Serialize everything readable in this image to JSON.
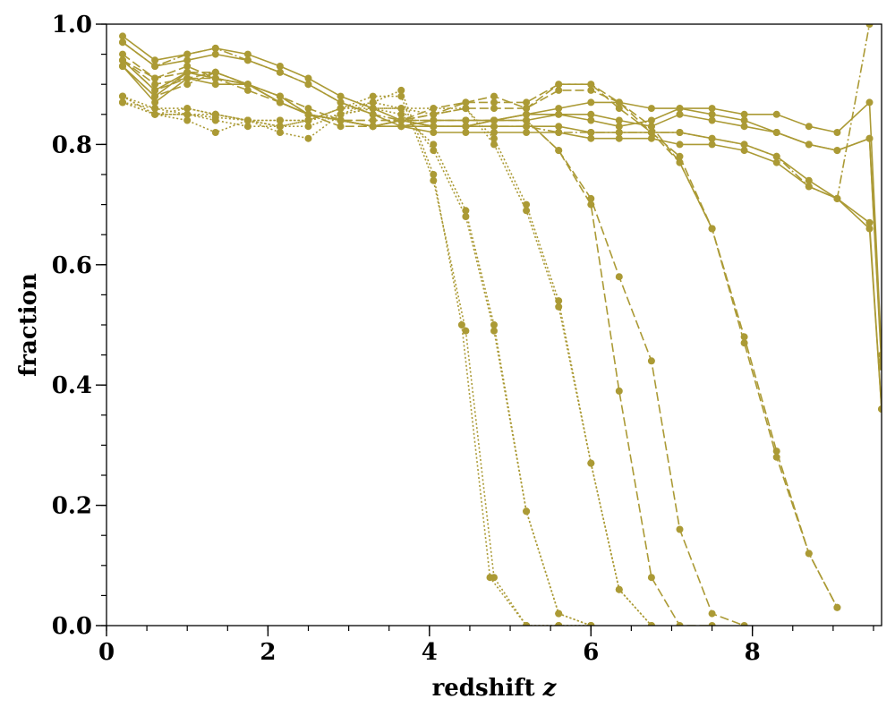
{
  "chart_data": {
    "type": "line",
    "title": "",
    "xlabel": "redshift",
    "xlabel_var": "z",
    "ylabel": "fraction",
    "xlim": [
      0,
      9.6
    ],
    "ylim": [
      0,
      1.0
    ],
    "grid": false,
    "legend": "none",
    "line_color": "#ab9a35",
    "x_ticks": [
      {
        "value": 0,
        "label": "0"
      },
      {
        "value": 2,
        "label": "2"
      },
      {
        "value": 4,
        "label": "4"
      },
      {
        "value": 6,
        "label": "6"
      },
      {
        "value": 8,
        "label": "8"
      }
    ],
    "y_ticks": [
      {
        "value": 0.0,
        "label": "0.0"
      },
      {
        "value": 0.2,
        "label": "0.2"
      },
      {
        "value": 0.4,
        "label": "0.4"
      },
      {
        "value": 0.6,
        "label": "0.6"
      },
      {
        "value": 0.8,
        "label": "0.8"
      },
      {
        "value": 1.0,
        "label": "1.0"
      }
    ],
    "x_minor_step": 0.5,
    "y_minor_step": 0.05,
    "series": [
      {
        "style": "dotted",
        "x": [
          0.2,
          0.6,
          1.0,
          1.35,
          1.75,
          2.15,
          2.5,
          2.9,
          3.3,
          3.65,
          4.05,
          4.4,
          4.75,
          5.2,
          5.6,
          6.0
        ],
        "values": [
          0.87,
          0.85,
          0.85,
          0.845,
          0.84,
          0.83,
          0.83,
          0.85,
          0.87,
          0.89,
          0.75,
          0.5,
          0.08,
          0.0,
          0.0,
          0.0
        ]
      },
      {
        "style": "dotted",
        "x": [
          0.2,
          0.6,
          1.0,
          1.35,
          1.75,
          2.15,
          2.5,
          2.9,
          3.3,
          3.65,
          4.05,
          4.45,
          4.8,
          5.2,
          5.6,
          6.0
        ],
        "values": [
          0.88,
          0.86,
          0.86,
          0.85,
          0.84,
          0.83,
          0.84,
          0.86,
          0.88,
          0.88,
          0.74,
          0.49,
          0.08,
          0.0,
          0.0,
          0.0
        ]
      },
      {
        "style": "dotted",
        "x": [
          0.2,
          0.6,
          1.0,
          1.35,
          1.75,
          2.15,
          2.5,
          2.9,
          3.3,
          3.65,
          4.05,
          4.45,
          4.8,
          5.2,
          5.6,
          6.0
        ],
        "values": [
          0.87,
          0.85,
          0.84,
          0.82,
          0.84,
          0.82,
          0.81,
          0.85,
          0.86,
          0.85,
          0.8,
          0.69,
          0.5,
          0.19,
          0.02,
          0.0
        ]
      },
      {
        "style": "dotted",
        "x": [
          0.2,
          0.6,
          1.0,
          1.35,
          1.75,
          2.15,
          2.5,
          2.9,
          3.3,
          3.65,
          4.05,
          4.45,
          4.8,
          5.2,
          5.6,
          6.0
        ],
        "values": [
          0.88,
          0.85,
          0.85,
          0.84,
          0.83,
          0.83,
          0.84,
          0.86,
          0.86,
          0.86,
          0.79,
          0.68,
          0.49,
          0.19,
          0.02,
          0.0
        ]
      },
      {
        "style": "dotted",
        "x": [
          0.2,
          0.6,
          1.0,
          1.35,
          1.75,
          2.15,
          2.5,
          2.9,
          3.3,
          3.65,
          4.05,
          4.45,
          4.8,
          5.2,
          5.6,
          6.0,
          6.35,
          6.75
        ],
        "values": [
          0.87,
          0.86,
          0.85,
          0.85,
          0.84,
          0.84,
          0.84,
          0.85,
          0.86,
          0.86,
          0.85,
          0.86,
          0.81,
          0.7,
          0.54,
          0.27,
          0.06,
          0.0
        ]
      },
      {
        "style": "dotted",
        "x": [
          0.2,
          0.6,
          1.0,
          1.35,
          1.75,
          2.15,
          2.5,
          2.9,
          3.3,
          3.65,
          4.05,
          4.45,
          4.8,
          5.2,
          5.6,
          6.0,
          6.35,
          6.75
        ],
        "values": [
          0.88,
          0.85,
          0.86,
          0.85,
          0.84,
          0.84,
          0.84,
          0.86,
          0.87,
          0.86,
          0.86,
          0.86,
          0.8,
          0.69,
          0.53,
          0.27,
          0.06,
          0.0
        ]
      },
      {
        "style": "dashed",
        "x": [
          0.2,
          0.6,
          1.0,
          1.35,
          1.75,
          2.15,
          2.5,
          2.9,
          3.3,
          3.65,
          4.05,
          4.45,
          4.8,
          5.2,
          5.6,
          6.0,
          6.35,
          6.75,
          7.1,
          7.5
        ],
        "values": [
          0.94,
          0.9,
          0.91,
          0.91,
          0.9,
          0.88,
          0.85,
          0.84,
          0.84,
          0.84,
          0.85,
          0.87,
          0.87,
          0.87,
          0.9,
          0.9,
          0.87,
          0.83,
          0.77,
          0.66
        ]
      },
      {
        "style": "dashed",
        "x": [
          0.2,
          0.6,
          1.0,
          1.35,
          1.75,
          2.15,
          2.5,
          2.9,
          3.3,
          3.65,
          4.05,
          4.45,
          4.8,
          5.2,
          5.6,
          6.0,
          6.35,
          6.75,
          7.1,
          7.5,
          7.9,
          8.3,
          8.7,
          9.05
        ],
        "values": [
          0.95,
          0.91,
          0.92,
          0.92,
          0.9,
          0.88,
          0.86,
          0.84,
          0.84,
          0.84,
          0.86,
          0.87,
          0.88,
          0.86,
          0.9,
          0.9,
          0.86,
          0.82,
          0.78,
          0.66,
          0.48,
          0.29,
          0.12,
          0.03
        ]
      },
      {
        "style": "dashed",
        "x": [
          0.2,
          0.6,
          1.0,
          1.35,
          1.75,
          2.15,
          2.5,
          2.9,
          3.3,
          3.65,
          4.05,
          4.45,
          4.8,
          5.2,
          5.6,
          6.0,
          6.35,
          6.75,
          7.1,
          7.5,
          7.9,
          8.3,
          8.7,
          9.05
        ],
        "values": [
          0.94,
          0.91,
          0.93,
          0.91,
          0.89,
          0.87,
          0.85,
          0.84,
          0.83,
          0.84,
          0.85,
          0.86,
          0.86,
          0.86,
          0.89,
          0.89,
          0.87,
          0.82,
          0.77,
          0.66,
          0.47,
          0.28,
          0.12,
          0.03
        ]
      },
      {
        "style": "dashed",
        "x": [
          0.2,
          0.6,
          1.0,
          1.35,
          1.75,
          2.15,
          2.5,
          2.9,
          3.3,
          3.65,
          4.05,
          4.45,
          4.8,
          5.2,
          5.6,
          6.0,
          6.35,
          6.75,
          7.1,
          7.5,
          7.9
        ],
        "values": [
          0.93,
          0.88,
          0.9,
          0.92,
          0.9,
          0.87,
          0.85,
          0.83,
          0.83,
          0.84,
          0.84,
          0.84,
          0.84,
          0.84,
          0.79,
          0.71,
          0.58,
          0.44,
          0.16,
          0.02,
          0.0
        ]
      },
      {
        "style": "dashed",
        "x": [
          0.2,
          0.6,
          1.0,
          1.35,
          1.75,
          2.15,
          2.5,
          2.9,
          3.3,
          3.65,
          4.05,
          4.45,
          4.8,
          5.2,
          5.6,
          6.0,
          6.35,
          6.75,
          7.1,
          7.5
        ],
        "values": [
          0.94,
          0.89,
          0.91,
          0.92,
          0.9,
          0.87,
          0.85,
          0.84,
          0.83,
          0.84,
          0.84,
          0.84,
          0.84,
          0.84,
          0.79,
          0.7,
          0.39,
          0.08,
          0.0,
          0.0
        ]
      },
      {
        "style": "dashdot",
        "x": [
          0.2,
          0.6,
          1.0,
          1.35,
          1.75,
          2.15,
          2.5,
          2.9,
          3.3,
          3.65,
          4.05,
          4.45,
          4.8,
          5.2,
          5.6,
          6.0,
          6.35,
          6.75,
          7.1,
          7.5,
          7.9,
          8.3,
          8.7,
          9.05,
          9.45
        ],
        "values": [
          0.97,
          0.93,
          0.95,
          0.96,
          0.94,
          0.92,
          0.9,
          0.87,
          0.85,
          0.84,
          0.83,
          0.83,
          0.83,
          0.83,
          0.82,
          0.82,
          0.82,
          0.82,
          0.82,
          0.81,
          0.8,
          0.78,
          0.73,
          0.71,
          1.0
        ]
      },
      {
        "style": "solid",
        "x": [
          0.2,
          0.6,
          1.0,
          1.35,
          1.75,
          2.15,
          2.5,
          2.9,
          3.3,
          3.65,
          4.05,
          4.45,
          4.8,
          5.2,
          5.6,
          6.0,
          6.35,
          6.75,
          7.1,
          7.5,
          7.9,
          8.3,
          8.7,
          9.05,
          9.45,
          9.6
        ],
        "values": [
          0.98,
          0.94,
          0.95,
          0.96,
          0.95,
          0.93,
          0.91,
          0.88,
          0.86,
          0.84,
          0.83,
          0.83,
          0.83,
          0.83,
          0.83,
          0.82,
          0.82,
          0.82,
          0.82,
          0.81,
          0.8,
          0.78,
          0.74,
          0.71,
          0.67,
          0.36
        ]
      },
      {
        "style": "solid",
        "x": [
          0.2,
          0.6,
          1.0,
          1.35,
          1.75,
          2.15,
          2.5,
          2.9,
          3.3,
          3.65,
          4.05,
          4.45,
          4.8,
          5.2,
          5.6,
          6.0,
          6.35,
          6.75,
          7.1,
          7.5,
          7.9,
          8.3,
          8.7,
          9.05,
          9.45,
          9.6
        ],
        "values": [
          0.97,
          0.93,
          0.94,
          0.95,
          0.94,
          0.92,
          0.9,
          0.87,
          0.85,
          0.83,
          0.82,
          0.82,
          0.82,
          0.82,
          0.82,
          0.81,
          0.81,
          0.81,
          0.8,
          0.8,
          0.79,
          0.77,
          0.73,
          0.71,
          0.66,
          0.36
        ]
      },
      {
        "style": "solid",
        "x": [
          0.2,
          0.6,
          1.0,
          1.35,
          1.75,
          2.15,
          2.5,
          2.9,
          3.3,
          3.65,
          4.05,
          4.45,
          4.8,
          5.2,
          5.6,
          6.0,
          6.35,
          6.75,
          7.1,
          7.5,
          7.9,
          8.3,
          8.7,
          9.05,
          9.45,
          9.6
        ],
        "values": [
          0.93,
          0.88,
          0.92,
          0.91,
          0.9,
          0.87,
          0.85,
          0.84,
          0.83,
          0.83,
          0.84,
          0.84,
          0.84,
          0.85,
          0.86,
          0.87,
          0.87,
          0.86,
          0.86,
          0.86,
          0.85,
          0.85,
          0.83,
          0.82,
          0.87,
          0.45
        ]
      },
      {
        "style": "solid",
        "x": [
          0.2,
          0.6,
          1.0,
          1.35,
          1.75,
          2.15,
          2.5,
          2.9,
          3.3,
          3.65,
          4.05,
          4.45,
          4.8,
          5.2,
          5.6,
          6.0,
          6.35,
          6.75,
          7.1,
          7.5,
          7.9,
          8.3,
          8.7,
          9.05,
          9.45,
          9.6
        ],
        "values": [
          0.94,
          0.89,
          0.92,
          0.91,
          0.9,
          0.87,
          0.85,
          0.84,
          0.83,
          0.84,
          0.83,
          0.83,
          0.84,
          0.85,
          0.85,
          0.84,
          0.83,
          0.84,
          0.86,
          0.85,
          0.84,
          0.82,
          0.8,
          0.79,
          0.81,
          0.44
        ]
      },
      {
        "style": "solid",
        "x": [
          0.2,
          0.6,
          1.0,
          1.35,
          1.75,
          2.15,
          2.5,
          2.9,
          3.3,
          3.65,
          4.05,
          4.45,
          4.8,
          5.2,
          5.6,
          6.0,
          6.35,
          6.75,
          7.1,
          7.5,
          7.9,
          8.3,
          8.7,
          9.05,
          9.45,
          9.6
        ],
        "values": [
          0.93,
          0.87,
          0.91,
          0.9,
          0.9,
          0.88,
          0.85,
          0.84,
          0.83,
          0.83,
          0.83,
          0.83,
          0.84,
          0.84,
          0.85,
          0.85,
          0.84,
          0.83,
          0.85,
          0.84,
          0.83,
          0.82,
          0.8,
          0.79,
          0.81,
          0.43
        ]
      }
    ]
  }
}
